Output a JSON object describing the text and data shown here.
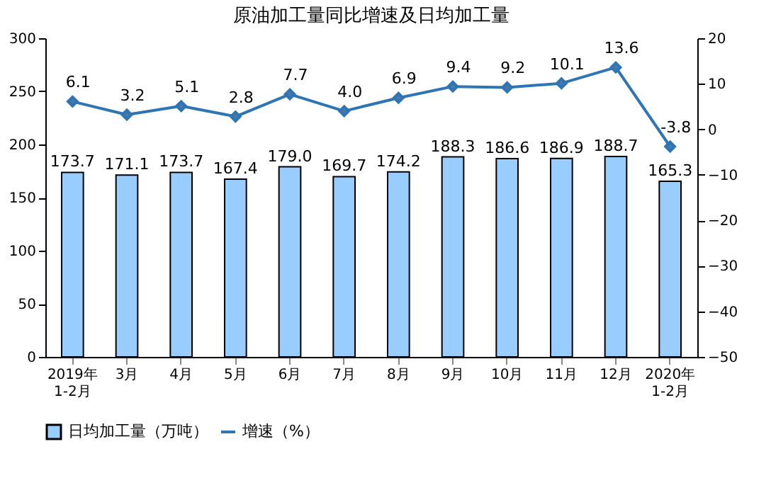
{
  "chart_data": {
    "type": "bar",
    "title": "原油加工量同比增速及日均加工量",
    "categories": [
      "2019年\n1-2月",
      "3月",
      "4月",
      "5月",
      "6月",
      "7月",
      "8月",
      "9月",
      "10月",
      "11月",
      "12月",
      "2020年\n1-2月"
    ],
    "series": [
      {
        "name": "日均加工量（万吨）",
        "color": "#99ccff",
        "values": [
          173.7,
          171.1,
          173.7,
          167.4,
          179.0,
          169.7,
          174.2,
          188.3,
          186.6,
          186.9,
          188.7,
          165.3
        ],
        "value_labels": [
          "173.7",
          "171.1",
          "173.7",
          "167.4",
          "179.0",
          "169.7",
          "174.2",
          "188.3",
          "186.6",
          "186.9",
          "188.7",
          "165.3"
        ]
      },
      {
        "name": "增速（%）",
        "type": "line",
        "axis": "y2",
        "color": "#2e75b6",
        "marker": "diamond",
        "values": [
          6.1,
          3.2,
          5.1,
          2.8,
          7.7,
          4.0,
          6.9,
          9.4,
          9.2,
          10.1,
          13.6,
          -3.8
        ],
        "value_labels": [
          "6.1",
          "3.2",
          "5.1",
          "2.8",
          "7.7",
          "4.0",
          "6.9",
          "9.4",
          "9.2",
          "10.1",
          "13.6",
          "-3.8"
        ]
      }
    ],
    "ylim": [
      0,
      300
    ],
    "yticks": [
      0,
      50,
      100,
      150,
      200,
      250,
      300
    ],
    "y2lim": [
      -50,
      20
    ],
    "y2ticks": [
      -50,
      -40,
      -30,
      -20,
      -10,
      0,
      10,
      20
    ],
    "legend": "bottom",
    "grid": false
  }
}
